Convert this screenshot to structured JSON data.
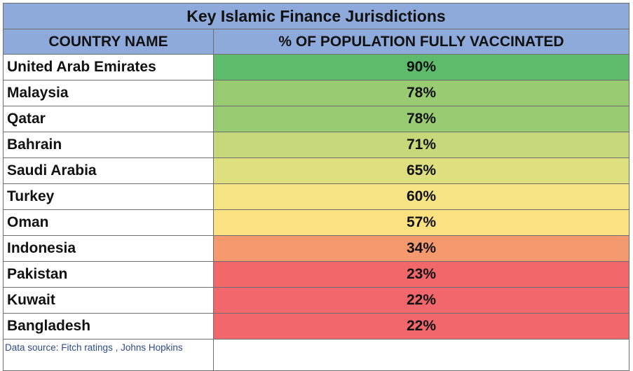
{
  "chart_data": {
    "type": "table",
    "title": "Key Islamic Finance Jurisdictions",
    "columns": [
      "COUNTRY NAME",
      "% OF POPULATION FULLY VACCINATED"
    ],
    "rows": [
      {
        "country": "United Arab Emirates",
        "value": 90,
        "label": "90%",
        "color": "#5dbb6b"
      },
      {
        "country": "Malaysia",
        "value": 78,
        "label": "78%",
        "color": "#99cc72"
      },
      {
        "country": "Qatar",
        "value": 78,
        "label": "78%",
        "color": "#99cc72"
      },
      {
        "country": "Bahrain",
        "value": 71,
        "label": "71%",
        "color": "#c6d97a"
      },
      {
        "country": "Saudi Arabia",
        "value": 65,
        "label": "65%",
        "color": "#dedf7f"
      },
      {
        "country": "Turkey",
        "value": 60,
        "label": "60%",
        "color": "#f6e383"
      },
      {
        "country": "Oman",
        "value": 57,
        "label": "57%",
        "color": "#fbe17f"
      },
      {
        "country": "Indonesia",
        "value": 34,
        "label": "34%",
        "color": "#f59a6f"
      },
      {
        "country": "Pakistan",
        "value": 23,
        "label": "23%",
        "color": "#f2686a"
      },
      {
        "country": "Kuwait",
        "value": 22,
        "label": "22%",
        "color": "#f2676b"
      },
      {
        "country": "Bangladesh",
        "value": 22,
        "label": "22%",
        "color": "#f2676b"
      }
    ],
    "source": "Data source: Fitch ratings , Johns Hopkins"
  },
  "colors": {
    "header_background": "#8eaadb",
    "border": "#6e6e6e",
    "source_text": "#2e4a8a"
  }
}
